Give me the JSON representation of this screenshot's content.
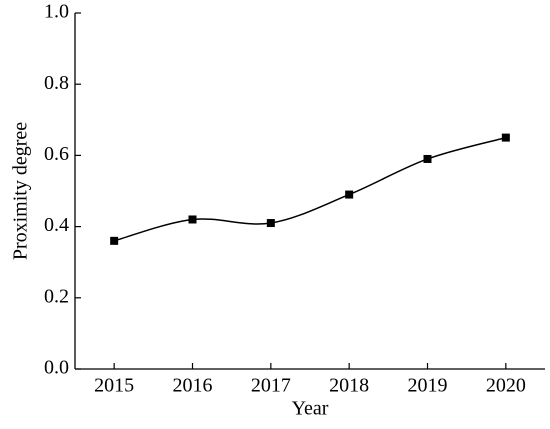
{
  "chart_data": {
    "type": "line",
    "x_label": "Year",
    "y_label": "Proximity degree",
    "categories": [
      "2015",
      "2016",
      "2017",
      "2018",
      "2019",
      "2020"
    ],
    "values": [
      0.36,
      0.42,
      0.41,
      0.49,
      0.59,
      0.65
    ],
    "color": "#000000",
    "ylim": [
      0,
      1
    ],
    "yticks": [
      {
        "value": 0,
        "label": "0.0"
      },
      {
        "value": 0.2,
        "label": "0.2"
      },
      {
        "value": 0.4,
        "label": "0.4"
      },
      {
        "value": 0.6,
        "label": "0.6"
      },
      {
        "value": 0.8,
        "label": "0.8"
      },
      {
        "value": 1,
        "label": "1.0"
      }
    ],
    "grid": false
  }
}
